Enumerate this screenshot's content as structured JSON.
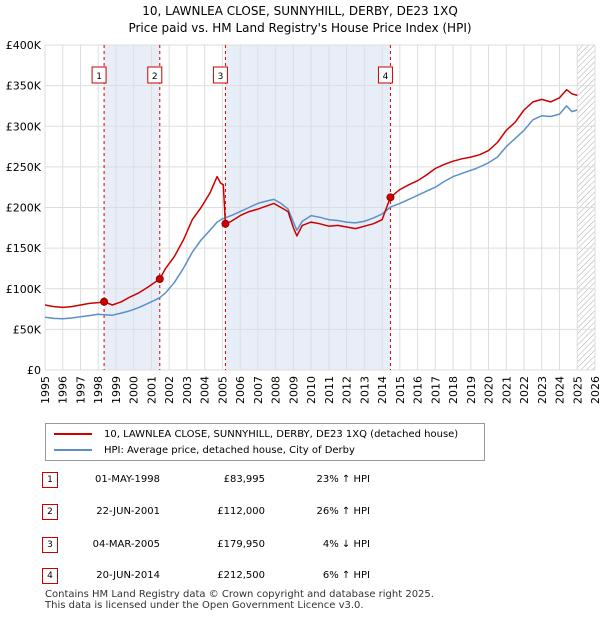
{
  "title_line1": "10, LAWNLEA CLOSE, SUNNYHILL, DERBY, DE23 1XQ",
  "title_line2": "Price paid vs. HM Land Registry's House Price Index (HPI)",
  "colors": {
    "property": "#cc0000",
    "hpi": "#5b8fc9",
    "shade": "#e8eef8",
    "grid": "#dddddd",
    "marker_border": "#cc0000"
  },
  "legend": {
    "property_label": "10, LAWNLEA CLOSE, SUNNYHILL, DERBY, DE23 1XQ (detached house)",
    "hpi_label": "HPI: Average price, detached house, City of Derby"
  },
  "sales": [
    {
      "num": "1",
      "date": "01-MAY-1998",
      "price": "£83,995",
      "hpi": "23% ↑ HPI"
    },
    {
      "num": "2",
      "date": "22-JUN-2001",
      "price": "£112,000",
      "hpi": "26% ↑ HPI"
    },
    {
      "num": "3",
      "date": "04-MAR-2005",
      "price": "£179,950",
      "hpi": "4% ↓ HPI"
    },
    {
      "num": "4",
      "date": "20-JUN-2014",
      "price": "£212,500",
      "hpi": "6% ↑ HPI"
    }
  ],
  "footer_line1": "Contains HM Land Registry data © Crown copyright and database right 2025.",
  "footer_line2": "This data is licensed under the Open Government Licence v3.0.",
  "chart_data": {
    "type": "line",
    "title": "10, LAWNLEA CLOSE, SUNNYHILL, DERBY, DE23 1XQ",
    "subtitle": "Price paid vs. HM Land Registry's House Price Index (HPI)",
    "xlim": [
      1995,
      2026
    ],
    "ylim": [
      0,
      400000
    ],
    "x_ticks": [
      1995,
      1996,
      1997,
      1998,
      1999,
      2000,
      2001,
      2002,
      2003,
      2004,
      2005,
      2006,
      2007,
      2008,
      2009,
      2010,
      2011,
      2012,
      2013,
      2014,
      2015,
      2016,
      2017,
      2018,
      2019,
      2020,
      2021,
      2022,
      2023,
      2024,
      2025,
      2026
    ],
    "y_ticks": [
      {
        "value": 0,
        "label": "£0"
      },
      {
        "value": 50000,
        "label": "£50K"
      },
      {
        "value": 100000,
        "label": "£100K"
      },
      {
        "value": 150000,
        "label": "£150K"
      },
      {
        "value": 200000,
        "label": "£200K"
      },
      {
        "value": 250000,
        "label": "£250K"
      },
      {
        "value": 300000,
        "label": "£300K"
      },
      {
        "value": 350000,
        "label": "£350K"
      },
      {
        "value": 400000,
        "label": "£400K"
      }
    ],
    "shaded_ranges": [
      [
        1998.33,
        2001.47
      ],
      [
        2005.17,
        2014.47
      ]
    ],
    "hatched_from": 2025.0,
    "series": [
      {
        "name": "10, LAWNLEA CLOSE, SUNNYHILL, DERBY, DE23 1XQ (detached house)",
        "color": "#cc0000",
        "points": [
          [
            1995.0,
            80000
          ],
          [
            1995.5,
            78000
          ],
          [
            1996.0,
            77000
          ],
          [
            1996.5,
            78000
          ],
          [
            1997.0,
            80000
          ],
          [
            1997.5,
            82000
          ],
          [
            1998.0,
            83000
          ],
          [
            1998.33,
            83995
          ],
          [
            1998.8,
            80000
          ],
          [
            1999.3,
            84000
          ],
          [
            1999.8,
            90000
          ],
          [
            2000.3,
            95000
          ],
          [
            2000.8,
            102000
          ],
          [
            2001.2,
            108000
          ],
          [
            2001.47,
            112000
          ],
          [
            2001.8,
            125000
          ],
          [
            2002.3,
            140000
          ],
          [
            2002.8,
            160000
          ],
          [
            2003.3,
            185000
          ],
          [
            2003.8,
            200000
          ],
          [
            2004.3,
            218000
          ],
          [
            2004.7,
            238000
          ],
          [
            2004.9,
            230000
          ],
          [
            2005.05,
            228000
          ],
          [
            2005.17,
            179950
          ],
          [
            2005.5,
            183000
          ],
          [
            2006.0,
            190000
          ],
          [
            2006.5,
            195000
          ],
          [
            2007.0,
            198000
          ],
          [
            2007.5,
            202000
          ],
          [
            2007.9,
            205000
          ],
          [
            2008.3,
            200000
          ],
          [
            2008.7,
            195000
          ],
          [
            2009.0,
            175000
          ],
          [
            2009.2,
            165000
          ],
          [
            2009.5,
            178000
          ],
          [
            2010.0,
            182000
          ],
          [
            2010.5,
            180000
          ],
          [
            2011.0,
            177000
          ],
          [
            2011.5,
            178000
          ],
          [
            2012.0,
            176000
          ],
          [
            2012.5,
            174000
          ],
          [
            2013.0,
            177000
          ],
          [
            2013.5,
            180000
          ],
          [
            2014.0,
            185000
          ],
          [
            2014.47,
            212500
          ],
          [
            2015.0,
            222000
          ],
          [
            2015.5,
            228000
          ],
          [
            2016.0,
            233000
          ],
          [
            2016.5,
            240000
          ],
          [
            2017.0,
            248000
          ],
          [
            2017.5,
            253000
          ],
          [
            2018.0,
            257000
          ],
          [
            2018.5,
            260000
          ],
          [
            2019.0,
            262000
          ],
          [
            2019.5,
            265000
          ],
          [
            2020.0,
            270000
          ],
          [
            2020.5,
            280000
          ],
          [
            2021.0,
            295000
          ],
          [
            2021.5,
            305000
          ],
          [
            2022.0,
            320000
          ],
          [
            2022.5,
            330000
          ],
          [
            2023.0,
            333000
          ],
          [
            2023.5,
            330000
          ],
          [
            2024.0,
            335000
          ],
          [
            2024.4,
            345000
          ],
          [
            2024.7,
            340000
          ],
          [
            2025.0,
            338000
          ]
        ]
      },
      {
        "name": "HPI: Average price, detached house, City of Derby",
        "color": "#5b8fc9",
        "points": [
          [
            1995.0,
            65000
          ],
          [
            1995.5,
            63500
          ],
          [
            1996.0,
            63000
          ],
          [
            1996.5,
            64000
          ],
          [
            1997.0,
            65500
          ],
          [
            1997.5,
            67000
          ],
          [
            1998.0,
            68500
          ],
          [
            1998.33,
            68000
          ],
          [
            1998.8,
            67500
          ],
          [
            1999.3,
            70000
          ],
          [
            1999.8,
            73000
          ],
          [
            2000.3,
            77000
          ],
          [
            2000.8,
            82000
          ],
          [
            2001.2,
            86000
          ],
          [
            2001.47,
            89000
          ],
          [
            2001.8,
            95000
          ],
          [
            2002.3,
            108000
          ],
          [
            2002.8,
            125000
          ],
          [
            2003.3,
            145000
          ],
          [
            2003.8,
            160000
          ],
          [
            2004.3,
            172000
          ],
          [
            2004.7,
            182000
          ],
          [
            2005.0,
            186000
          ],
          [
            2005.17,
            187500
          ],
          [
            2005.5,
            190000
          ],
          [
            2006.0,
            195000
          ],
          [
            2006.5,
            200000
          ],
          [
            2007.0,
            205000
          ],
          [
            2007.5,
            208000
          ],
          [
            2007.9,
            210000
          ],
          [
            2008.3,
            205000
          ],
          [
            2008.7,
            198000
          ],
          [
            2009.0,
            182000
          ],
          [
            2009.2,
            172000
          ],
          [
            2009.5,
            183000
          ],
          [
            2010.0,
            190000
          ],
          [
            2010.5,
            188000
          ],
          [
            2011.0,
            185000
          ],
          [
            2011.5,
            184000
          ],
          [
            2012.0,
            182000
          ],
          [
            2012.5,
            181000
          ],
          [
            2013.0,
            183000
          ],
          [
            2013.5,
            187000
          ],
          [
            2014.0,
            192000
          ],
          [
            2014.47,
            200500
          ],
          [
            2015.0,
            205000
          ],
          [
            2015.5,
            210000
          ],
          [
            2016.0,
            215000
          ],
          [
            2016.5,
            220000
          ],
          [
            2017.0,
            225000
          ],
          [
            2017.5,
            232000
          ],
          [
            2018.0,
            238000
          ],
          [
            2018.5,
            242000
          ],
          [
            2018.9,
            245000
          ],
          [
            2019.3,
            248000
          ],
          [
            2019.7,
            252000
          ],
          [
            2020.0,
            255000
          ],
          [
            2020.5,
            262000
          ],
          [
            2021.0,
            275000
          ],
          [
            2021.5,
            285000
          ],
          [
            2022.0,
            295000
          ],
          [
            2022.5,
            308000
          ],
          [
            2023.0,
            313000
          ],
          [
            2023.5,
            312000
          ],
          [
            2024.0,
            315000
          ],
          [
            2024.4,
            325000
          ],
          [
            2024.7,
            318000
          ],
          [
            2025.0,
            320000
          ]
        ]
      }
    ],
    "sales_markers": [
      {
        "num": "1",
        "x": 1998.33,
        "y": 83995
      },
      {
        "num": "2",
        "x": 2001.47,
        "y": 112000
      },
      {
        "num": "3",
        "x": 2005.17,
        "y": 179950
      },
      {
        "num": "4",
        "x": 2014.47,
        "y": 212500
      }
    ]
  }
}
